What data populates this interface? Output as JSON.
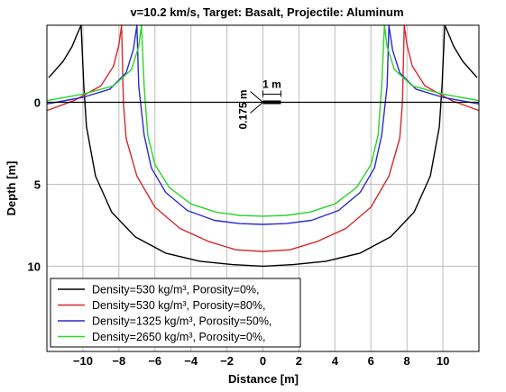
{
  "chart_data": {
    "type": "line",
    "title": "v=10.2 km/s,   Target: Basalt,   Projectile: Aluminum",
    "xlabel": "Distance [m]",
    "ylabel": "Depth [m]",
    "xlim": [
      -12,
      12
    ],
    "ylim": [
      -4.7,
      15.2
    ],
    "y_inverted": true,
    "grid": true,
    "x_ticks": [
      -10,
      -8,
      -6,
      -4,
      -2,
      0,
      2,
      4,
      6,
      8,
      10
    ],
    "y_ticks": [
      0,
      5,
      10
    ],
    "legend_position": "bottom-left",
    "annotations": [
      {
        "text": "1 m",
        "type": "horizontal-scale-bar",
        "x": [
          0,
          1
        ],
        "y": 0
      },
      {
        "text": "0.175 m",
        "type": "vertical-scale-bar"
      }
    ],
    "series": [
      {
        "name": "Density=530 kg/m³,   Porosity=0%,",
        "color": "#000000",
        "x": [
          -11.9,
          -11.1,
          -10.6,
          -10.3,
          -10.1,
          -9.95,
          -9.8,
          -9.3,
          -8.4,
          -7.1,
          -5.4,
          -3.5,
          -1.7,
          0,
          1.7,
          3.5,
          5.4,
          7.1,
          8.4,
          9.3,
          9.8,
          9.95,
          10.1,
          10.3,
          10.6,
          11.1,
          11.9
        ],
        "y": [
          -1.5,
          -2.5,
          -3.4,
          -4.2,
          -4.7,
          -1.0,
          1.5,
          4.5,
          6.7,
          8.2,
          9.2,
          9.7,
          9.9,
          10.0,
          9.9,
          9.7,
          9.2,
          8.2,
          6.7,
          4.5,
          1.5,
          -1.0,
          -4.7,
          -4.2,
          -3.4,
          -2.5,
          -1.5
        ]
      },
      {
        "name": "Density=530 kg/m³,   Porosity=80%,",
        "color": "#d42a2a",
        "x": [
          -12.0,
          -10.5,
          -9.0,
          -8.3,
          -8.0,
          -7.85,
          -7.75,
          -7.6,
          -7.0,
          -6.0,
          -4.6,
          -3.0,
          -1.5,
          0,
          1.5,
          3.0,
          4.6,
          6.0,
          7.0,
          7.6,
          7.75,
          7.85,
          8.0,
          8.3,
          9.0,
          10.5,
          12.0
        ],
        "y": [
          0.5,
          -0.1,
          -1.0,
          -2.2,
          -3.5,
          -4.7,
          0.0,
          2.2,
          4.5,
          6.4,
          7.7,
          8.5,
          9.0,
          9.1,
          9.0,
          8.5,
          7.7,
          6.4,
          4.5,
          2.2,
          0.0,
          -4.7,
          -3.5,
          -2.2,
          -1.0,
          -0.1,
          0.5
        ]
      },
      {
        "name": "Density=1325 kg/m³,   Porosity=50%,",
        "color": "#2a2ad4",
        "x": [
          -12.0,
          -10.0,
          -8.5,
          -7.6,
          -7.2,
          -7.0,
          -6.9,
          -6.6,
          -6.2,
          -5.4,
          -4.2,
          -2.7,
          -1.3,
          0,
          1.3,
          2.7,
          4.2,
          5.4,
          6.2,
          6.6,
          6.9,
          7.0,
          7.2,
          7.6,
          8.5,
          10.0,
          12.0
        ],
        "y": [
          0.1,
          -0.3,
          -0.8,
          -1.8,
          -3.2,
          -4.7,
          -1.0,
          2.0,
          4.0,
          5.5,
          6.6,
          7.2,
          7.4,
          7.45,
          7.4,
          7.2,
          6.6,
          5.5,
          4.0,
          2.0,
          -1.0,
          -4.7,
          -3.2,
          -1.8,
          -0.8,
          -0.3,
          0.1
        ]
      },
      {
        "name": "Density=2650 kg/m³,   Porosity=0%,",
        "color": "#2ad42a",
        "x": [
          -12.0,
          -10.0,
          -8.3,
          -7.3,
          -6.9,
          -6.75,
          -6.6,
          -6.4,
          -6.0,
          -5.2,
          -4.0,
          -2.6,
          -1.3,
          0,
          1.3,
          2.6,
          4.0,
          5.2,
          6.0,
          6.4,
          6.6,
          6.75,
          6.9,
          7.3,
          8.3,
          10.0,
          12.0
        ],
        "y": [
          -0.1,
          -0.5,
          -1.0,
          -2.0,
          -3.4,
          -4.7,
          -1.0,
          2.0,
          3.8,
          5.2,
          6.2,
          6.7,
          6.9,
          6.95,
          6.9,
          6.7,
          6.2,
          5.2,
          3.8,
          2.0,
          -1.0,
          -4.7,
          -3.4,
          -2.0,
          -1.0,
          -0.5,
          -0.1
        ]
      }
    ]
  }
}
